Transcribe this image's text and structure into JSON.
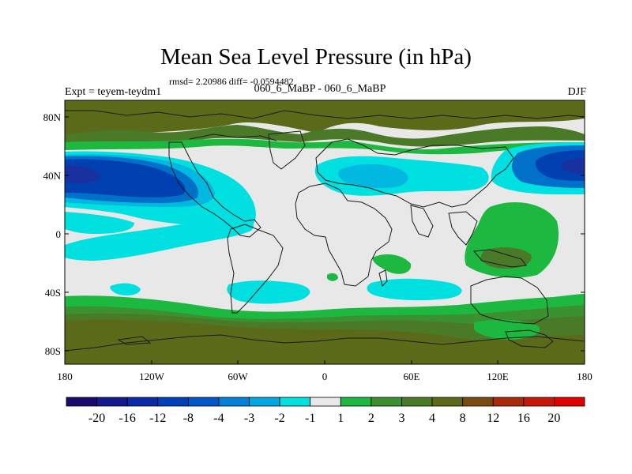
{
  "title": "Mean Sea Level Pressure (in hPa)",
  "stats": "rmsd= 2.20986 diff= -0.0594482",
  "experiment": "Expt = teyem-teydm1",
  "runs": "060_6_MaBP - 060_6_MaBP",
  "season": "DJF",
  "colors": {
    "neutral": "#e8e8e8",
    "neg1": "#00e0e0",
    "neg2": "#00b8e0",
    "neg4": "#0070c8",
    "neg8": "#0040b0",
    "neg12": "#1830a0",
    "pos1": "#1db840",
    "pos2": "#3b9030",
    "pos3": "#4a7a28",
    "pos4": "#5a6a18"
  },
  "map": {
    "lat_labels": [
      "80N",
      "40N",
      "0",
      "40S",
      "80S"
    ],
    "lon_labels": [
      "180",
      "120W",
      "60W",
      "0",
      "60E",
      "120E",
      "180"
    ]
  },
  "colorbar": {
    "labels": [
      "-20",
      "-16",
      "-12",
      "-8",
      "-4",
      "-3",
      "-2",
      "-1",
      "1",
      "2",
      "3",
      "4",
      "8",
      "12",
      "16",
      "20"
    ],
    "colors": [
      "#1a0a6e",
      "#131a8c",
      "#0a2aa8",
      "#0040b8",
      "#0058c8",
      "#0080d8",
      "#00a8e0",
      "#00e0e0",
      "#e8e8e8",
      "#1db840",
      "#3b9030",
      "#4a7a28",
      "#5a6a18",
      "#7a4a10",
      "#a82a08",
      "#c81808",
      "#e00000"
    ]
  }
}
